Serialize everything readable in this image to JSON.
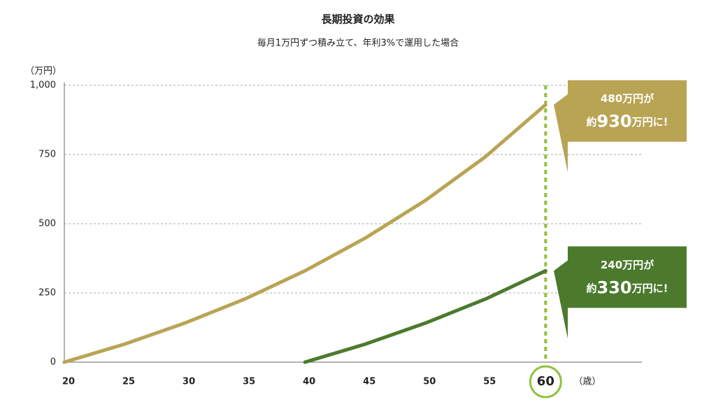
{
  "chart_data": {
    "type": "line",
    "title": "長期投資の効果",
    "subtitle": "毎月1万円ずつ積み立て、年利3%で運用した場合",
    "y_unit": "（万円）",
    "x_unit": "（歳）",
    "xlim": [
      20,
      68
    ],
    "ylim": [
      0,
      1000
    ],
    "xticks": [
      20,
      25,
      30,
      35,
      40,
      45,
      50,
      55,
      60
    ],
    "yticks": [
      0,
      250,
      500,
      750,
      {
        "value": 1000,
        "label": "1,000"
      }
    ],
    "grid": true,
    "vline_x": 60,
    "vline_color": "#8fc23f",
    "series": [
      {
        "color": "#b9a454",
        "x": [
          20,
          25,
          30,
          35,
          40,
          45,
          50,
          55,
          60
        ],
        "values": [
          0,
          65,
          141,
          228,
          330,
          448,
          584,
          742,
          930
        ],
        "callout": {
          "line1": "480万円が",
          "prefix": "約",
          "amount": 930,
          "suffix": "万円に!"
        }
      },
      {
        "color": "#4b7a2d",
        "x": [
          40,
          45,
          50,
          55,
          60
        ],
        "values": [
          0,
          65,
          141,
          228,
          330
        ],
        "callout": {
          "line1": "240万円が",
          "prefix": "約",
          "amount": 330,
          "suffix": "万円に!"
        }
      }
    ]
  }
}
